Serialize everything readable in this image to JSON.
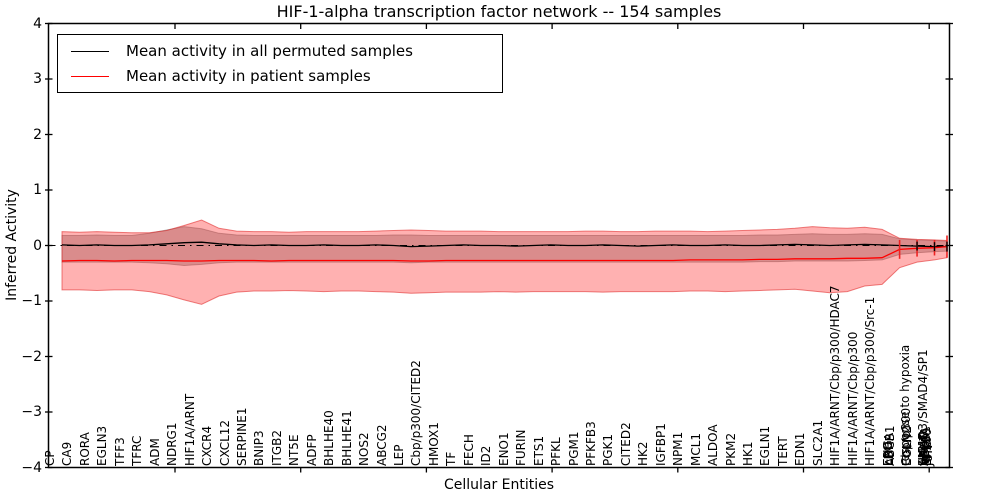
{
  "legend": {
    "items": [
      {
        "label": "Mean activity in all permuted samples",
        "color": "#000000"
      },
      {
        "label": "Mean activity in patient samples",
        "color": "#ff0000"
      }
    ]
  },
  "colors": {
    "permuted_line": "#000000",
    "patient_line": "#ff0000",
    "permuted_band_fill": "rgba(120,120,120,0.45)",
    "permuted_band_edge": "rgba(110,110,110,0.55)",
    "patient_band_fill": "rgba(255,60,60,0.40)",
    "patient_band_edge": "rgba(225,45,45,0.60)",
    "axis": "#000000"
  },
  "chart_data": {
    "type": "line",
    "title": "HIF-1-alpha transcription factor network -- 154 samples",
    "xlabel": "Cellular Entities",
    "ylabel": "Inferred Activity",
    "ylim": [
      -4,
      4
    ],
    "y_tick_labels": [
      "4",
      "3",
      "2",
      "1",
      "0",
      "−1",
      "−2",
      "−3",
      "−4"
    ],
    "y_tick_values": [
      4,
      3,
      2,
      1,
      0,
      -1,
      -2,
      -3,
      -4
    ],
    "grid": false,
    "legend_position": "upper left",
    "zero_line": {
      "style": "dash-dot",
      "y": 0
    },
    "x_tick_labels": [
      "CP",
      "CA9",
      "RORA",
      "EGLN3",
      "TFF3",
      "TFRC",
      "ADM",
      "NDRG1",
      "HIF1A/ARNT",
      "CXCR4",
      "CXCL12",
      "SERPINE1",
      "BNIP3",
      "ITGB2",
      "NT5E",
      "ADFP",
      "BHLHE40",
      "BHLHE41",
      "NOS2",
      "ABCG2",
      "LEP",
      "Cbp/p300/CITED2",
      "HMOX1",
      "TF",
      "FECH",
      "ID2",
      "ENO1",
      "FURIN",
      "ETS1",
      "PFKL",
      "PGM1",
      "PFKFB3",
      "PGK1",
      "CITED2",
      "HK2",
      "IGFBP1",
      "NPM1",
      "MCL1",
      "ALDOA",
      "PKM2",
      "HK1",
      "EGLN1",
      "TERT",
      "EDN1",
      "SLC2A1",
      "HIF1A/ARNT/Cbp/p300/HDAC7",
      "HIF1A/ARNT/Cbp/p300",
      "HIF1A/ARNT/Cbp/p300/Src-1",
      [
        "EPO",
        "ENG",
        "LDHA",
        "ABCB1"
      ],
      [
        "response to hypoxia",
        "Cbp/p300",
        "EGLN2"
      ],
      [
        "SMAD3/SMAD4/SP1",
        "HIF1A",
        "ARNT",
        "VEGFA",
        "NFKB1",
        "MYC",
        "EP300",
        "JUN"
      ]
    ],
    "series": [
      {
        "name": "Mean activity in all permuted samples",
        "color": "#000000",
        "values": [
          0.01,
          0.0,
          0.01,
          0.0,
          0.0,
          0.01,
          0.03,
          0.05,
          0.06,
          0.03,
          0.01,
          0.0,
          0.01,
          0.0,
          0.0,
          0.01,
          0.0,
          0.0,
          0.01,
          0.0,
          -0.02,
          -0.01,
          0.0,
          0.01,
          0.0,
          0.0,
          -0.01,
          0.0,
          0.01,
          0.0,
          0.0,
          0.01,
          0.0,
          -0.01,
          0.0,
          0.01,
          0.0,
          0.0,
          0.01,
          0.0,
          0.0,
          0.01,
          0.02,
          0.01,
          0.0,
          0.01,
          0.02,
          0.01,
          0.0,
          -0.01,
          -0.02,
          -0.02
        ]
      },
      {
        "name": "Mean activity in patient samples",
        "color": "#ff0000",
        "values": [
          -0.28,
          -0.27,
          -0.27,
          -0.28,
          -0.27,
          -0.27,
          -0.27,
          -0.28,
          -0.28,
          -0.27,
          -0.27,
          -0.27,
          -0.28,
          -0.27,
          -0.27,
          -0.27,
          -0.27,
          -0.27,
          -0.27,
          -0.27,
          -0.28,
          -0.28,
          -0.27,
          -0.27,
          -0.27,
          -0.27,
          -0.27,
          -0.27,
          -0.27,
          -0.27,
          -0.27,
          -0.27,
          -0.27,
          -0.27,
          -0.27,
          -0.27,
          -0.26,
          -0.26,
          -0.26,
          -0.26,
          -0.25,
          -0.25,
          -0.24,
          -0.24,
          -0.24,
          -0.23,
          -0.23,
          -0.22,
          -0.07,
          -0.05,
          -0.04,
          -0.02
        ]
      }
    ],
    "bands": [
      {
        "name": "permuted-samples-band",
        "upper": [
          0.18,
          0.18,
          0.19,
          0.18,
          0.18,
          0.22,
          0.28,
          0.34,
          0.3,
          0.22,
          0.19,
          0.18,
          0.18,
          0.18,
          0.18,
          0.18,
          0.18,
          0.18,
          0.18,
          0.19,
          0.19,
          0.18,
          0.18,
          0.18,
          0.18,
          0.18,
          0.18,
          0.18,
          0.18,
          0.18,
          0.18,
          0.18,
          0.18,
          0.18,
          0.18,
          0.18,
          0.18,
          0.18,
          0.18,
          0.18,
          0.19,
          0.19,
          0.2,
          0.21,
          0.2,
          0.2,
          0.21,
          0.2,
          0.12,
          0.1,
          0.09,
          0.08
        ],
        "lower": [
          -0.3,
          -0.3,
          -0.3,
          -0.3,
          -0.3,
          -0.31,
          -0.33,
          -0.36,
          -0.34,
          -0.31,
          -0.3,
          -0.3,
          -0.3,
          -0.3,
          -0.3,
          -0.3,
          -0.3,
          -0.3,
          -0.3,
          -0.3,
          -0.31,
          -0.3,
          -0.3,
          -0.3,
          -0.3,
          -0.3,
          -0.3,
          -0.3,
          -0.3,
          -0.3,
          -0.3,
          -0.3,
          -0.3,
          -0.3,
          -0.3,
          -0.3,
          -0.3,
          -0.3,
          -0.3,
          -0.3,
          -0.29,
          -0.29,
          -0.28,
          -0.28,
          -0.28,
          -0.28,
          -0.27,
          -0.26,
          -0.16,
          -0.13,
          -0.11,
          -0.1
        ]
      },
      {
        "name": "patient-samples-band",
        "upper": [
          0.25,
          0.24,
          0.25,
          0.24,
          0.23,
          0.23,
          0.27,
          0.36,
          0.46,
          0.31,
          0.26,
          0.25,
          0.25,
          0.24,
          0.25,
          0.25,
          0.25,
          0.25,
          0.26,
          0.27,
          0.28,
          0.27,
          0.26,
          0.26,
          0.26,
          0.25,
          0.25,
          0.25,
          0.25,
          0.25,
          0.26,
          0.26,
          0.25,
          0.25,
          0.26,
          0.26,
          0.26,
          0.25,
          0.26,
          0.27,
          0.28,
          0.29,
          0.31,
          0.34,
          0.32,
          0.31,
          0.33,
          0.29,
          0.13,
          0.11,
          0.1,
          0.09
        ],
        "lower": [
          -0.8,
          -0.8,
          -0.81,
          -0.8,
          -0.8,
          -0.83,
          -0.89,
          -0.98,
          -1.06,
          -0.91,
          -0.84,
          -0.82,
          -0.82,
          -0.81,
          -0.82,
          -0.83,
          -0.82,
          -0.82,
          -0.83,
          -0.84,
          -0.86,
          -0.85,
          -0.84,
          -0.84,
          -0.84,
          -0.83,
          -0.84,
          -0.83,
          -0.83,
          -0.83,
          -0.83,
          -0.84,
          -0.83,
          -0.83,
          -0.83,
          -0.83,
          -0.82,
          -0.82,
          -0.83,
          -0.82,
          -0.81,
          -0.8,
          -0.79,
          -0.82,
          -0.85,
          -0.83,
          -0.73,
          -0.7,
          -0.4,
          -0.3,
          -0.26,
          -0.22
        ]
      }
    ],
    "error_caps": {
      "red": {
        "indices": [
          48,
          49,
          50,
          51
        ],
        "half": [
          0.17,
          0.15,
          0.14,
          0.2
        ]
      },
      "black": {
        "indices": [
          49,
          50,
          51
        ],
        "half": [
          0.08,
          0.08,
          0.09
        ]
      }
    }
  }
}
